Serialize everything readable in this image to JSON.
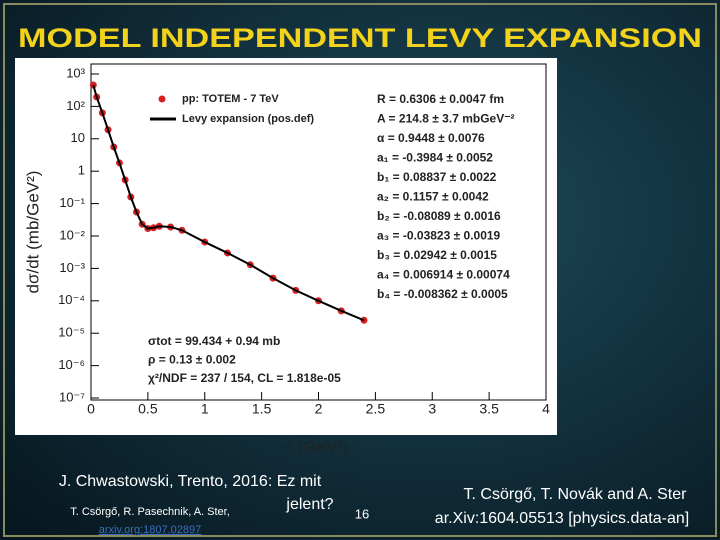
{
  "slide": {
    "title": "MODEL INDEPENDENT LEVY EXPANSION",
    "footer_left": [
      "J. Chwastowski, Trento, 2016: Ez mit",
      "jelent?"
    ],
    "footer_authors": "T. Csörgő, R. Pasechnik, A. Ster,",
    "footer_link": "arxiv.org:1807.02897",
    "page_number": "16",
    "footer_right": [
      "T. Csörgő, T. Novák and A. Ster",
      "ar.Xiv:1604.05513 [physics.data-an]"
    ]
  },
  "chart_data": {
    "type": "line",
    "xlabel": "-t (GeV²)",
    "ylabel": "dσ/dt (mb/GeV²)",
    "x": [
      0.02,
      0.05,
      0.1,
      0.15,
      0.2,
      0.25,
      0.3,
      0.35,
      0.4,
      0.45,
      0.5,
      0.55,
      0.6,
      0.7,
      0.8,
      1.0,
      1.2,
      1.4,
      1.6,
      1.8,
      2.0,
      2.2,
      2.4
    ],
    "series": [
      {
        "name": "pp: TOTEM - 7 TeV",
        "color": "#d42020",
        "style": "markers",
        "values": [
          457,
          195,
          63,
          19,
          5.6,
          1.8,
          0.54,
          0.16,
          0.055,
          0.023,
          0.017,
          0.018,
          0.02,
          0.019,
          0.015,
          0.0065,
          0.003,
          0.0013,
          0.0005,
          0.00021,
          0.0001,
          4.9e-05,
          2.5e-05
        ]
      },
      {
        "name": "Levy expansion (pos.def)",
        "color": "#000000",
        "style": "line",
        "values": [
          457,
          195,
          63,
          19,
          5.6,
          1.8,
          0.54,
          0.16,
          0.055,
          0.023,
          0.017,
          0.018,
          0.02,
          0.019,
          0.015,
          0.0065,
          0.003,
          0.0013,
          0.0005,
          0.00021,
          0.0001,
          4.9e-05,
          2.5e-05
        ]
      }
    ],
    "xlim": [
      0,
      4
    ],
    "xticks": [
      0,
      0.5,
      1,
      1.5,
      2,
      2.5,
      3,
      3.5,
      4
    ],
    "ylim": [
      1e-07,
      1000
    ],
    "log_y": true,
    "yticks": [
      {
        "value": 1000,
        "label": "10³"
      },
      {
        "value": 100,
        "label": "10²"
      },
      10,
      1,
      {
        "value": 0.1,
        "label": "10⁻¹"
      },
      {
        "value": 0.01,
        "label": "10⁻²"
      },
      {
        "value": 0.001,
        "label": "10⁻³"
      },
      {
        "value": 0.0001,
        "label": "10⁻⁴"
      },
      {
        "value": 1e-05,
        "label": "10⁻⁵"
      },
      {
        "value": 1e-06,
        "label": "10⁻⁶"
      },
      {
        "value": 1e-07,
        "label": "10⁻⁷"
      }
    ],
    "parameters": [
      "R = 0.6306 ± 0.0047 fm",
      "A = 214.8 ± 3.7 mbGeV⁻²",
      "α = 0.9448 ± 0.0076",
      "a₁ = -0.3984 ± 0.0052",
      "b₁ = 0.08837 ± 0.0022",
      "a₂ = 0.1157 ± 0.0042",
      "b₂ = -0.08089 ± 0.0016",
      "a₃ = -0.03823 ± 0.0019",
      "b₃ = 0.02942 ± 0.0015",
      "a₄ = 0.006914 ± 0.00074",
      "b₄ = -0.008362 ± 0.0005"
    ],
    "fit_results": [
      "σtot = 99.434 + 0.94 mb",
      "ρ = 0.13 ± 0.002",
      "χ²/NDF = 237 / 154, CL = 1.818e-05"
    ]
  }
}
